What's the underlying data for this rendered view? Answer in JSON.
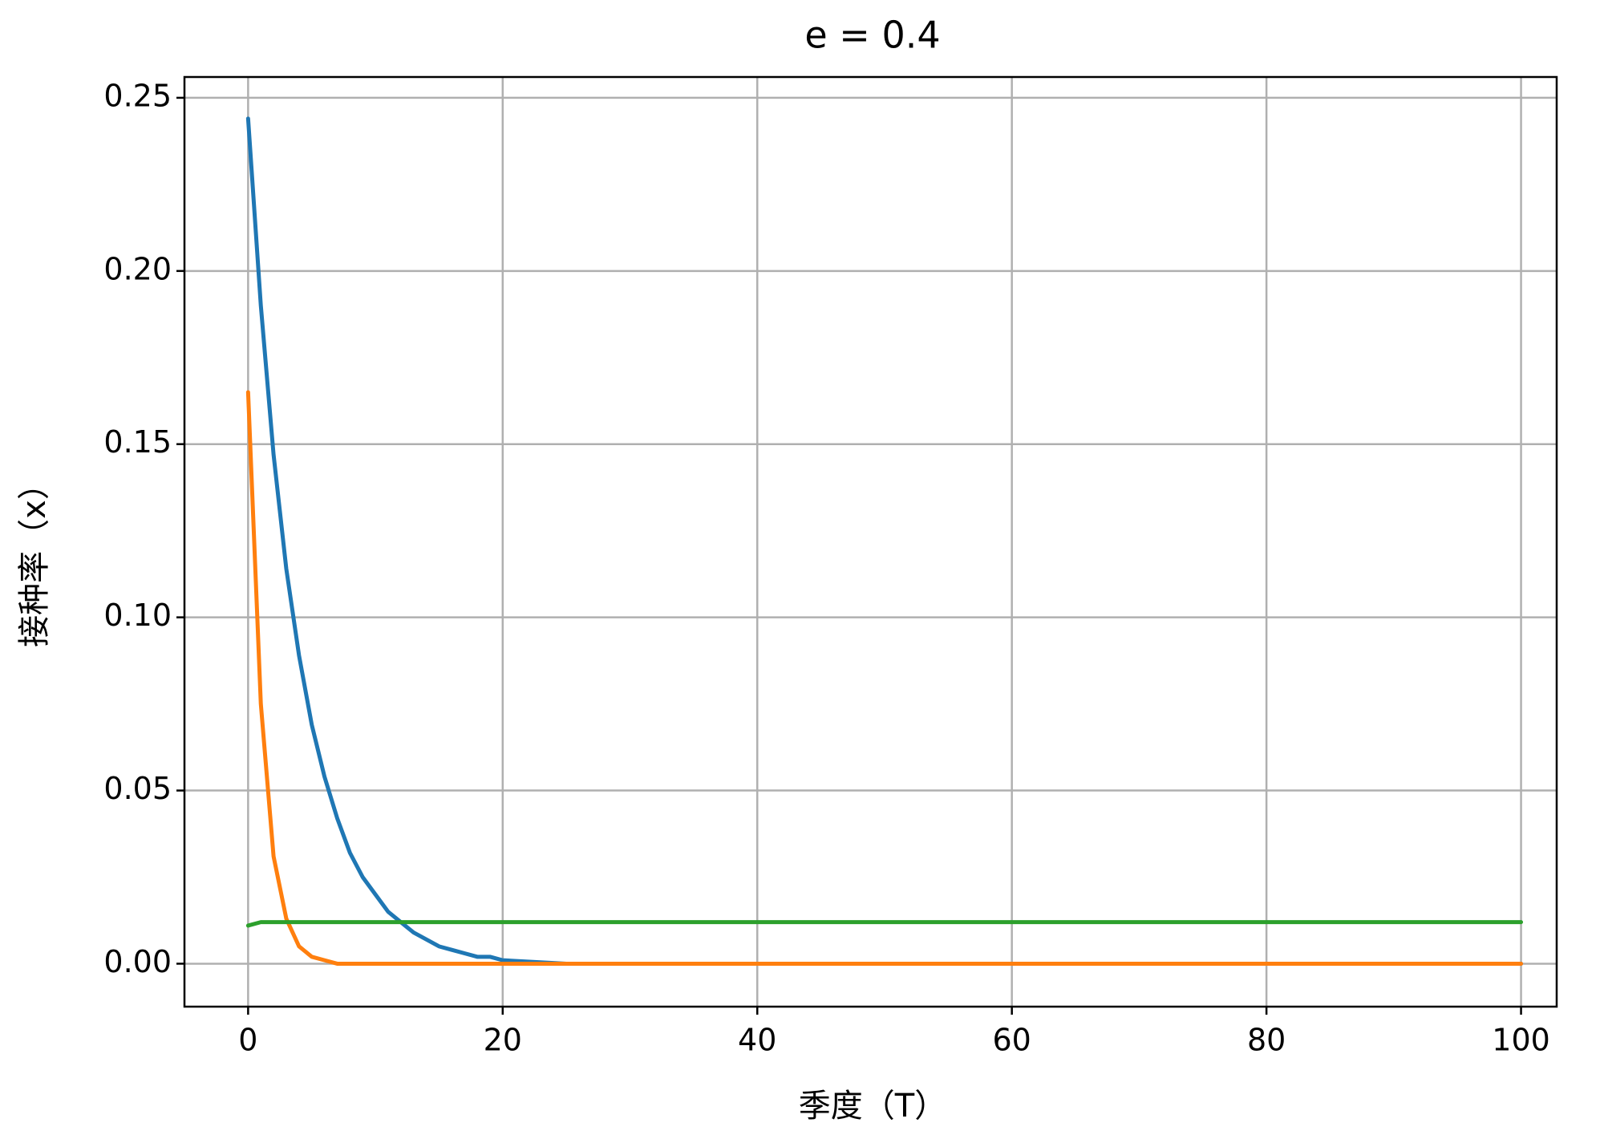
{
  "chart_data": {
    "type": "line",
    "title": "e = 0.4",
    "xlabel": "季度（T）",
    "ylabel": "接种率（x）",
    "x": [
      0,
      1,
      2,
      3,
      4,
      5,
      6,
      7,
      8,
      9,
      10,
      11,
      12,
      13,
      14,
      15,
      16,
      17,
      18,
      19,
      20,
      25,
      30,
      40,
      50,
      60,
      70,
      80,
      90,
      100
    ],
    "series": [
      {
        "color": "#1f77b4",
        "values": [
          0.244,
          0.19,
          0.147,
          0.114,
          0.089,
          0.069,
          0.054,
          0.042,
          0.032,
          0.025,
          0.02,
          0.015,
          0.012,
          0.009,
          0.007,
          0.005,
          0.004,
          0.003,
          0.002,
          0.002,
          0.001,
          0,
          0,
          0,
          0,
          0,
          0,
          0,
          0,
          0
        ]
      },
      {
        "color": "#ff7f0e",
        "values": [
          0.165,
          0.075,
          0.031,
          0.013,
          0.005,
          0.002,
          0.001,
          0,
          0,
          0,
          0,
          0,
          0,
          0,
          0,
          0,
          0,
          0,
          0,
          0,
          0,
          0,
          0,
          0,
          0,
          0,
          0,
          0,
          0,
          0
        ]
      },
      {
        "color": "#2ca02c",
        "values": [
          0.011,
          0.012,
          0.012,
          0.012,
          0.012,
          0.012,
          0.012,
          0.012,
          0.012,
          0.012,
          0.012,
          0.012,
          0.012,
          0.012,
          0.012,
          0.012,
          0.012,
          0.012,
          0.012,
          0.012,
          0.012,
          0.012,
          0.012,
          0.012,
          0.012,
          0.012,
          0.012,
          0.012,
          0.012,
          0.012
        ]
      }
    ],
    "xlim": [
      -5,
      102.8
    ],
    "ylim": [
      -0.0124,
      0.256
    ],
    "xticks": [
      0,
      20,
      40,
      60,
      80,
      100
    ],
    "yticks": [
      {
        "value": 0,
        "label": "0.00"
      },
      {
        "value": 0.05,
        "label": "0.05"
      },
      {
        "value": 0.1,
        "label": "0.10"
      },
      {
        "value": 0.15,
        "label": "0.15"
      },
      {
        "value": 0.2,
        "label": "0.20"
      },
      {
        "value": 0.25,
        "label": "0.25"
      }
    ],
    "grid": true
  }
}
